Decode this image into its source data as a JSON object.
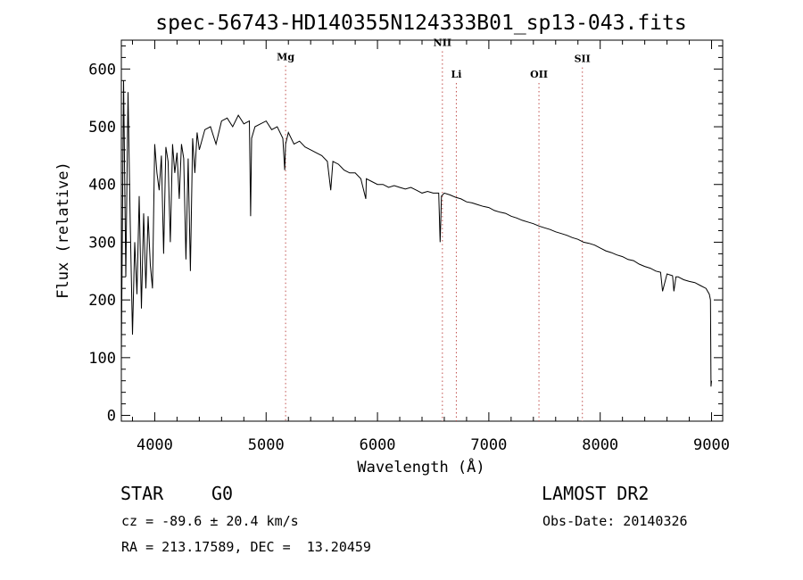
{
  "chart_data": {
    "type": "line",
    "title": "spec-56743-HD140355N124333B01_sp13-043.fits",
    "xlabel": "Wavelength (Å)",
    "ylabel": "Flux (relative)",
    "xlim": [
      3700,
      9100
    ],
    "ylim": [
      -10,
      650
    ],
    "x_ticks": [
      4000,
      5000,
      6000,
      7000,
      8000,
      9000
    ],
    "y_ticks": [
      0,
      100,
      200,
      300,
      400,
      500,
      600
    ],
    "grid": false,
    "series": [
      {
        "x": [
          3700,
          3720,
          3740,
          3760,
          3780,
          3800,
          3820,
          3840,
          3860,
          3880,
          3900,
          3920,
          3940,
          3960,
          3980,
          4000,
          4020,
          4040,
          4060,
          4080,
          4100,
          4120,
          4140,
          4160,
          4180,
          4200,
          4220,
          4240,
          4260,
          4280,
          4300,
          4320,
          4340,
          4360,
          4380,
          4400,
          4450,
          4500,
          4550,
          4600,
          4650,
          4700,
          4750,
          4800,
          4850,
          4861,
          4870,
          4900,
          4950,
          5000,
          5050,
          5100,
          5150,
          5167,
          5175,
          5200,
          5250,
          5300,
          5350,
          5400,
          5450,
          5500,
          5550,
          5580,
          5600,
          5650,
          5700,
          5750,
          5800,
          5850,
          5895,
          5900,
          5950,
          6000,
          6050,
          6100,
          6150,
          6200,
          6250,
          6300,
          6350,
          6400,
          6450,
          6500,
          6550,
          6563,
          6575,
          6600,
          6650,
          6700,
          6750,
          6800,
          6850,
          6900,
          6950,
          7000,
          7050,
          7100,
          7150,
          7200,
          7250,
          7300,
          7350,
          7400,
          7450,
          7500,
          7550,
          7600,
          7650,
          7700,
          7750,
          7800,
          7850,
          7900,
          7950,
          8000,
          8050,
          8100,
          8150,
          8200,
          8250,
          8300,
          8350,
          8400,
          8450,
          8500,
          8542,
          8560,
          8600,
          8650,
          8662,
          8680,
          8700,
          8750,
          8800,
          8850,
          8900,
          8950,
          8980,
          8990,
          8995,
          9000
        ],
        "y": [
          100,
          580,
          240,
          560,
          330,
          140,
          300,
          210,
          380,
          185,
          350,
          220,
          345,
          260,
          220,
          470,
          420,
          390,
          450,
          280,
          465,
          440,
          300,
          470,
          420,
          455,
          375,
          470,
          445,
          270,
          445,
          250,
          480,
          420,
          490,
          460,
          495,
          500,
          470,
          510,
          515,
          500,
          520,
          505,
          510,
          345,
          480,
          500,
          505,
          510,
          495,
          500,
          480,
          425,
          470,
          490,
          470,
          475,
          465,
          460,
          455,
          450,
          440,
          390,
          440,
          435,
          425,
          420,
          420,
          410,
          375,
          410,
          405,
          400,
          400,
          395,
          398,
          395,
          392,
          395,
          390,
          385,
          388,
          385,
          385,
          300,
          380,
          385,
          382,
          378,
          375,
          370,
          368,
          365,
          362,
          360,
          355,
          352,
          350,
          345,
          342,
          338,
          335,
          332,
          328,
          325,
          322,
          318,
          315,
          312,
          308,
          305,
          300,
          298,
          295,
          290,
          285,
          282,
          278,
          275,
          270,
          268,
          262,
          258,
          255,
          250,
          248,
          215,
          245,
          242,
          215,
          240,
          240,
          235,
          232,
          230,
          225,
          220,
          210,
          200,
          50,
          60
        ]
      }
    ],
    "spectral_lines": [
      {
        "label": "Mg",
        "x": 5175,
        "label_y": 615
      },
      {
        "label": "NII",
        "x": 6583,
        "label_y": 640
      },
      {
        "label": "Li",
        "x": 6708,
        "label_y": 585
      },
      {
        "label": "OII",
        "x": 7450,
        "label_y": 585
      },
      {
        "label": "SII",
        "x": 7840,
        "label_y": 612
      }
    ]
  },
  "info": {
    "object_class": "STAR",
    "subclass": "G0",
    "cz": "cz = -89.6 ± 20.4 km/s",
    "coords": "RA = 213.17589, DEC =  13.20459",
    "survey": "LAMOST DR2",
    "obs_date": "Obs-Date: 20140326"
  }
}
